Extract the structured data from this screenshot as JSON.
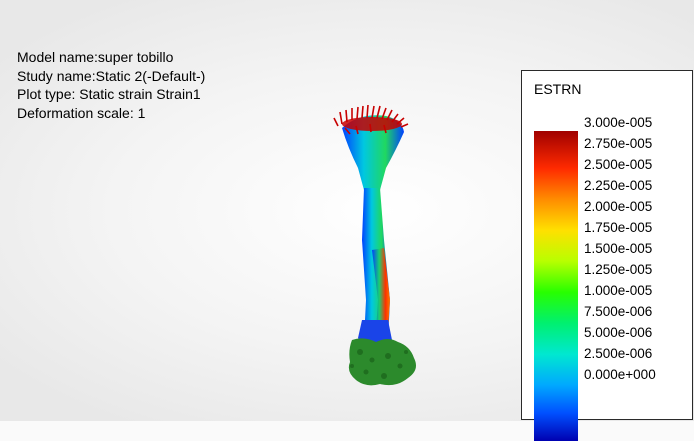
{
  "info": {
    "model_name": "Model name:super tobillo",
    "study_name": "Study name:Static 2(-Default-)",
    "plot_type": "Plot type: Static strain Strain1",
    "deformation_scale": "Deformation scale: 1"
  },
  "legend": {
    "title": "ESTRN",
    "labels": [
      "3.000e-005",
      "2.750e-005",
      "2.500e-005",
      "2.250e-005",
      "2.000e-005",
      "1.750e-005",
      "1.500e-005",
      "1.250e-005",
      "1.000e-005",
      "7.500e-006",
      "5.000e-006",
      "2.500e-006",
      "0.000e+000"
    ]
  },
  "colors": {
    "max": "#c80000",
    "mid": "#28ff00",
    "min": "#0000b0"
  }
}
